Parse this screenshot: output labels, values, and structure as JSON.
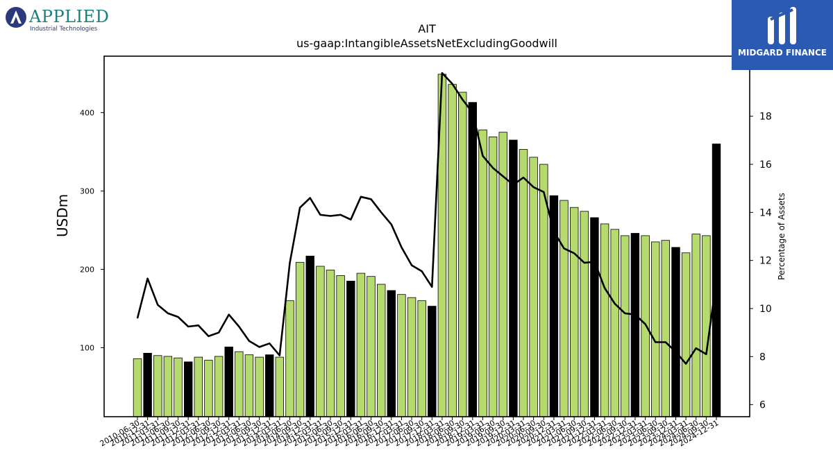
{
  "logos": {
    "left": {
      "word": "APPLIED",
      "sub": "Industrial Technologies"
    },
    "right": {
      "brand": "MIDGARD FINANCE"
    }
  },
  "colors": {
    "bar_quarterly": "#b5db6f",
    "bar_annual": "#000000",
    "line": "#000000",
    "brand_blue": "#2a5ab2",
    "applied_teal": "#17817c"
  },
  "chart_data": {
    "type": "bar",
    "title": "AIT",
    "subtitle": "us-gaap:IntangibleAssetsNetExcludingGoodwill",
    "ylabel": "USDm",
    "y2label": "Percentage of Assets",
    "ylim": [
      12,
      472
    ],
    "y2lim": [
      5.5,
      20.5
    ],
    "yticks": [
      100,
      200,
      300,
      400
    ],
    "y2ticks": [
      6,
      8,
      10,
      12,
      14,
      16,
      18
    ],
    "grid": false,
    "legend": "none",
    "categories": [
      "2010-06-30",
      "2010-12-31",
      "2011-03-31",
      "2011-06-30",
      "2011-09-30",
      "2011-12-31",
      "2012-03-31",
      "2012-06-30",
      "2012-09-30",
      "2012-12-31",
      "2013-03-31",
      "2013-06-30",
      "2013-09-30",
      "2013-12-31",
      "2014-03-31",
      "2014-06-30",
      "2014-09-30",
      "2014-12-31",
      "2015-03-31",
      "2015-06-30",
      "2015-09-30",
      "2015-12-31",
      "2016-03-31",
      "2016-06-30",
      "2016-09-30",
      "2016-12-31",
      "2017-03-31",
      "2017-06-30",
      "2017-09-30",
      "2017-12-31",
      "2018-03-31",
      "2018-06-30",
      "2018-09-30",
      "2018-12-31",
      "2019-03-31",
      "2019-06-30",
      "2019-09-30",
      "2019-12-31",
      "2020-03-31",
      "2020-06-30",
      "2020-09-30",
      "2020-12-31",
      "2021-03-31",
      "2021-06-30",
      "2021-09-30",
      "2021-12-31",
      "2022-03-31",
      "2022-06-30",
      "2022-09-30",
      "2022-12-31",
      "2023-03-31",
      "2023-06-30",
      "2023-09-30",
      "2023-12-31",
      "2024-03-31",
      "2024-06-30",
      "2024-09-30",
      "2024-12-31"
    ],
    "xtick_labels": [
      "2010-06-30",
      "2010-12-31",
      "2011-03-31",
      "2011-06-30",
      "2011-09-30",
      "2011-12-31",
      "2012-03-31",
      "2012-06-30",
      "2012-09-30",
      "2012-12-31",
      "2013-03-31",
      "2013-06-30",
      "2013-09-30",
      "2013-12-31",
      "2014-03-31",
      "2014-06-30",
      "2014-09-30",
      "2014-12-31",
      "2015-03-31",
      "2015-06-30",
      "2015-09-30",
      "2015-12-31",
      "2016-03-31",
      "2016-06-30",
      "2016-09-30",
      "2016-12-31",
      "2017-03-31",
      "2017-06-30",
      "2017-09-30",
      "2017-12-31",
      "2018-03-31",
      "2018-06-30",
      "2018-09-30",
      "2018-12-31",
      "2019-03-31",
      "2019-06-30",
      "2019-09-30",
      "2019-12-31",
      "2020-03-31",
      "2020-06-30",
      "2020-09-30",
      "2020-12-31",
      "2021-03-31",
      "2021-06-30",
      "2021-09-30",
      "2021-12-31",
      "2022-03-31",
      "2022-06-30",
      "2022-09-30",
      "2022-12-31",
      "2023-03-31",
      "2023-06-30",
      "2023-09-30",
      "2023-12-31",
      "2024-03-31",
      "2024-06-30",
      "2024-09-30",
      "2024-12-31"
    ],
    "annual_flags": [
      false,
      true,
      false,
      false,
      false,
      true,
      false,
      false,
      false,
      true,
      false,
      false,
      false,
      true,
      false,
      false,
      false,
      true,
      false,
      false,
      false,
      true,
      false,
      false,
      false,
      true,
      false,
      false,
      false,
      true,
      false,
      false,
      false,
      true,
      false,
      false,
      false,
      true,
      false,
      false,
      false,
      true,
      false,
      false,
      false,
      true,
      false,
      false,
      false,
      true,
      false,
      false,
      false,
      true,
      false,
      false,
      false,
      true
    ],
    "series": [
      {
        "kind": "bar",
        "axis": "left",
        "values": [
          86,
          93,
          90,
          89,
          87,
          82,
          88,
          84,
          89,
          101,
          95,
          91,
          88,
          91,
          88,
          160,
          209,
          217,
          204,
          199,
          192,
          185,
          195,
          191,
          181,
          173,
          168,
          164,
          160,
          153,
          449,
          436,
          426,
          413,
          378,
          369,
          375,
          365,
          353,
          343,
          334,
          294,
          288,
          279,
          274,
          266,
          258,
          251,
          243,
          246,
          243,
          235,
          237,
          228,
          221,
          245,
          243,
          360
        ]
      },
      {
        "kind": "line",
        "axis": "right",
        "values": [
          9.6,
          11.25,
          10.15,
          9.8,
          9.65,
          9.25,
          9.3,
          8.85,
          9.0,
          9.75,
          9.25,
          8.65,
          8.4,
          8.55,
          8.05,
          11.9,
          14.2,
          14.6,
          13.9,
          13.85,
          13.9,
          13.7,
          14.65,
          14.55,
          14.0,
          13.5,
          12.55,
          11.8,
          11.55,
          10.9,
          19.8,
          19.35,
          18.7,
          18.15,
          16.35,
          15.85,
          15.5,
          15.15,
          15.45,
          15.05,
          14.85,
          13.2,
          12.5,
          12.3,
          11.9,
          11.95,
          10.85,
          10.2,
          9.8,
          9.75,
          9.35,
          8.6,
          8.6,
          8.2,
          7.7,
          8.35,
          8.1,
          11.2
        ]
      }
    ]
  }
}
